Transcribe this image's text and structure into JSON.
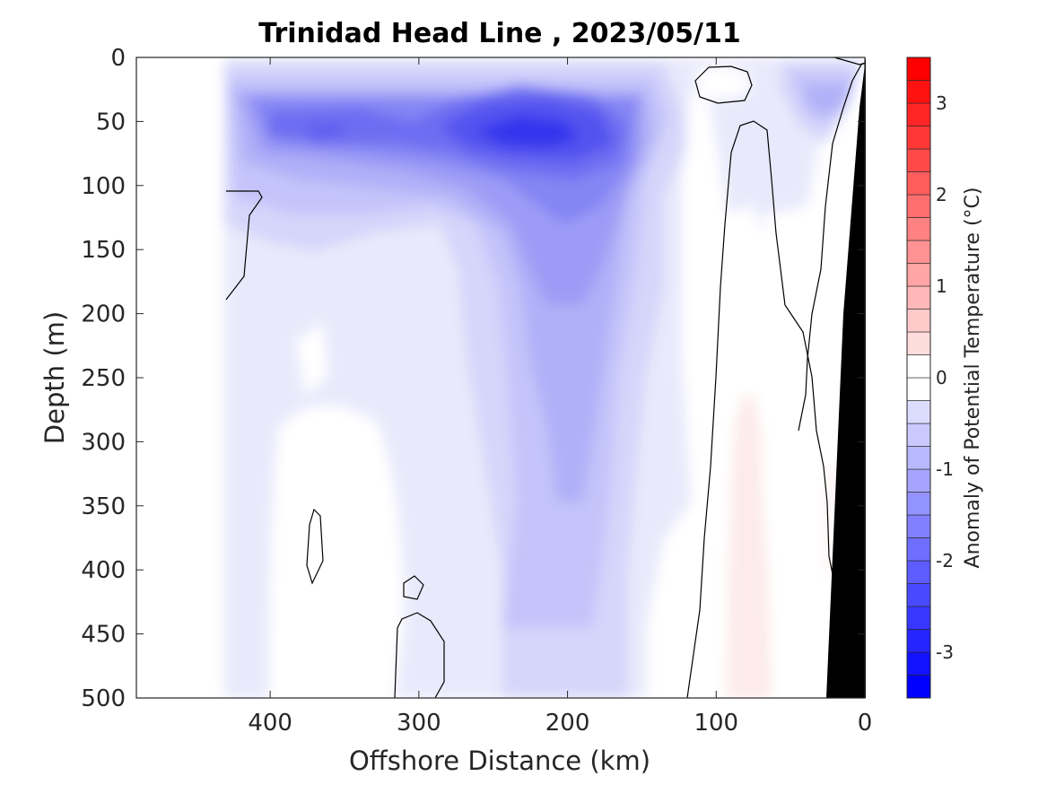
{
  "chart_data": {
    "type": "heatmap",
    "subtype": "filled-contour-section",
    "title": "Trinidad Head Line , 2023/05/11",
    "xlabel": "Offshore Distance (km)",
    "ylabel": "Depth (m)",
    "colorbar_label": "Anomaly of Potential Temperature (°C)",
    "xlim": [
      490,
      0
    ],
    "ylim": [
      0,
      500
    ],
    "x_reversed": true,
    "y_reversed": true,
    "x_ticks": [
      400,
      300,
      200,
      100,
      0
    ],
    "y_ticks": [
      0,
      50,
      100,
      150,
      200,
      250,
      300,
      350,
      400,
      450,
      500
    ],
    "colorbar_range": [
      -3.5,
      3.5
    ],
    "colorbar_step": 0.25,
    "colorbar_ticks": [
      -3,
      -2,
      -1,
      0,
      1,
      2,
      3
    ],
    "colormap": "blue-white-red",
    "cold_color": "#0000ff",
    "warm_color": "#ff0000",
    "bathymetry_color": "#000000",
    "data_extent_x": [
      433,
      0
    ],
    "zero_contour": "black",
    "regions": [
      {
        "feature": "strongest cold core",
        "x_center": 220,
        "depth_center": 60,
        "anomaly": -2.5
      },
      {
        "feature": "secondary cold core",
        "x_center": 360,
        "depth_center": 55,
        "anomaly": -1.5
      },
      {
        "feature": "nearshore surface cold patch",
        "x_center": 40,
        "depth_center": 40,
        "anomaly": -1.0
      },
      {
        "feature": "deep cold tongue",
        "x_center": 190,
        "depth_center": 300,
        "anomaly": -0.9
      },
      {
        "feature": "warm deep band",
        "x_center": 80,
        "depth_center": 400,
        "anomaly": 0.2
      },
      {
        "feature": "near-zero offshore deep",
        "x_center": 330,
        "depth_center": 380,
        "anomaly": 0.0
      }
    ]
  }
}
